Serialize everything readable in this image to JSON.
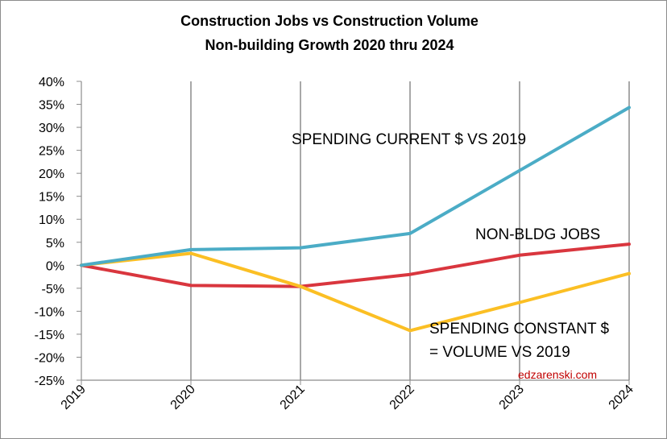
{
  "chart_data": {
    "type": "line",
    "title": [
      "Construction Jobs vs Construction Volume",
      "Non-building Growth 2020 thru 2024"
    ],
    "x": [
      "2019",
      "2020",
      "2021",
      "2022",
      "2023",
      "2024"
    ],
    "ylim": [
      -25,
      40
    ],
    "yticks": [
      40,
      35,
      30,
      25,
      20,
      15,
      10,
      5,
      0,
      -5,
      -10,
      -15,
      -20,
      -25
    ],
    "ytick_labels": [
      "40%",
      "35%",
      "30%",
      "25%",
      "20%",
      "15%",
      "10%",
      "5%",
      "0%",
      "-5%",
      "-10%",
      "-15%",
      "-20%",
      "-25%"
    ],
    "grid": "vertical",
    "legend": "none",
    "series": [
      {
        "key": "spending-current",
        "color": "#4bacc6",
        "values": [
          0,
          3.4,
          3.8,
          6.9,
          20.6,
          34.3
        ]
      },
      {
        "key": "non-bldg-jobs",
        "color": "#d9363e",
        "values": [
          0,
          -4.4,
          -4.6,
          -2.0,
          2.2,
          4.6
        ]
      },
      {
        "key": "spending-constant",
        "color": "#fbbf24",
        "values": [
          0,
          2.6,
          -4.6,
          -14.2,
          -8.1,
          -1.8
        ]
      }
    ],
    "annotations": [
      {
        "key": "spending-current-label",
        "lines": [
          "SPENDING CURRENT $ VS 2019"
        ]
      },
      {
        "key": "non-bldg-jobs-label",
        "lines": [
          "NON-BLDG JOBS"
        ]
      },
      {
        "key": "spending-constant-label",
        "lines": [
          "SPENDING CONSTANT $",
          "= VOLUME  VS 2019"
        ]
      }
    ],
    "watermark": {
      "text": "edzarenski.com",
      "color": "#c00000"
    }
  }
}
